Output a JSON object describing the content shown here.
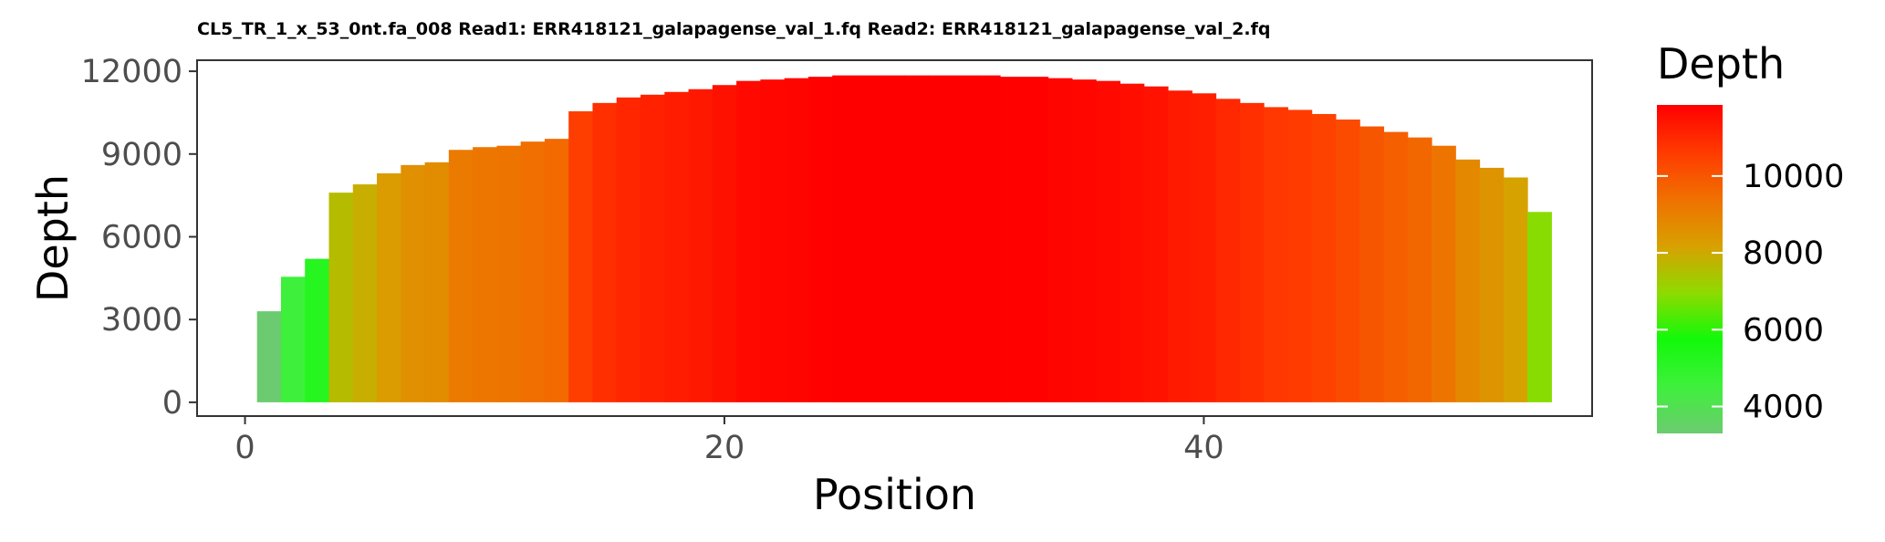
{
  "chart_data": {
    "type": "bar",
    "title": "CL5_TR_1_x_53_0nt.fa_008 Read1: ERR418121_galapagense_val_1.fq Read2: ERR418121_galapagense_val_2.fq",
    "xlabel": "Position",
    "ylabel": "Depth",
    "xlim": [
      -2,
      56.2
    ],
    "ylim": [
      -500,
      12400
    ],
    "x_ticks": [
      0,
      20,
      40
    ],
    "y_ticks": [
      0,
      3000,
      6000,
      9000,
      12000
    ],
    "grid": false,
    "legend": {
      "title": "Depth",
      "placement": "right",
      "breaks": [
        4000,
        6000,
        8000,
        10000
      ],
      "range": [
        3300,
        11850
      ],
      "colors": [
        "#6ccb70",
        "#3ff03c",
        "#12f90a",
        "#8fda00",
        "#d8a000",
        "#f07000",
        "#ff3a00",
        "#ff0000"
      ]
    },
    "x": [
      1,
      2,
      3,
      4,
      5,
      6,
      7,
      8,
      9,
      10,
      11,
      12,
      13,
      14,
      15,
      16,
      17,
      18,
      19,
      20,
      21,
      22,
      23,
      24,
      25,
      26,
      27,
      28,
      29,
      30,
      31,
      32,
      33,
      34,
      35,
      36,
      37,
      38,
      39,
      40,
      41,
      42,
      43,
      44,
      45,
      46,
      47,
      48,
      49,
      50,
      51,
      52,
      53,
      54
    ],
    "values": [
      3300,
      4550,
      5200,
      7600,
      7900,
      8300,
      8600,
      8700,
      9150,
      9250,
      9300,
      9450,
      9550,
      10550,
      10850,
      11050,
      11150,
      11250,
      11350,
      11500,
      11650,
      11700,
      11750,
      11800,
      11850,
      11850,
      11850,
      11850,
      11850,
      11850,
      11850,
      11800,
      11800,
      11750,
      11700,
      11650,
      11550,
      11450,
      11300,
      11200,
      11000,
      10850,
      10700,
      10600,
      10450,
      10250,
      10000,
      9800,
      9600,
      9300,
      8800,
      8500,
      8150,
      6900
    ]
  }
}
